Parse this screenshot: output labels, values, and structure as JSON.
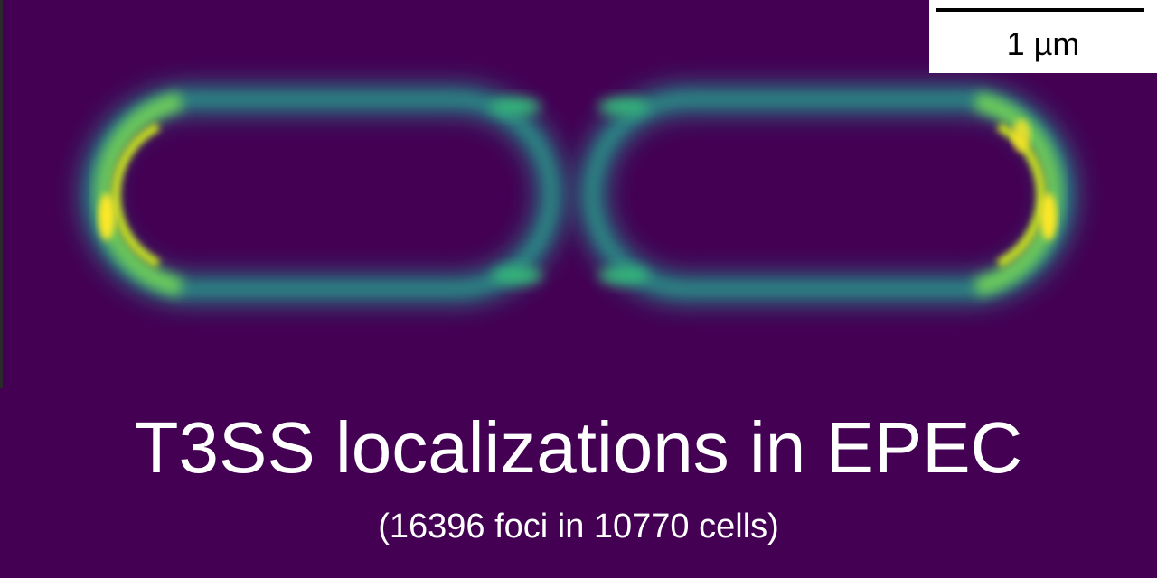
{
  "scalebar": {
    "label": "1 µm"
  },
  "title": "T3SS localizations in EPEC",
  "subtitle": "(16396 foci in 10770 cells)",
  "colors": {
    "background": "#440154",
    "low": "#26828e",
    "mid": "#35b779",
    "high": "#fde725"
  }
}
